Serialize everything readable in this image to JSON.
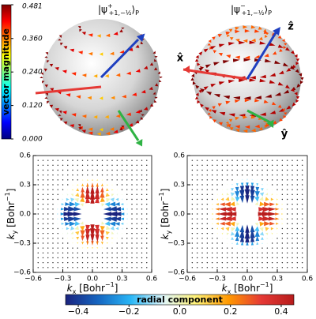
{
  "magnitude_bar": {
    "label": "vector magnitude",
    "lim": [
      0,
      0.481
    ],
    "ticks": [
      {
        "value": 0.481,
        "label": "0.481"
      },
      {
        "value": 0.36,
        "label": "0.360"
      },
      {
        "value": 0.24,
        "label": "0.240"
      },
      {
        "value": 0.12,
        "label": "0.120"
      },
      {
        "value": 0,
        "label": "0.000"
      }
    ],
    "colormap": [
      "#00007f",
      "#0000ff",
      "#0080ff",
      "#00ffff",
      "#7fff7f",
      "#ffff00",
      "#ff8000",
      "#ff0000",
      "#7f0000"
    ]
  },
  "spheres": [
    {
      "title": [
        "|ψ",
        "+",
        "+1,−½",
        "⟩",
        "P"
      ]
    },
    {
      "title": [
        "|ψ",
        "−",
        "+1,−½",
        "⟩",
        "P"
      ],
      "axis_labels": [
        "x̂",
        "ŷ",
        "ẑ"
      ]
    }
  ],
  "plots": [
    {
      "xlabel": [
        "k",
        "x",
        " [Bohr",
        "−1",
        "]"
      ],
      "ylabel": [
        "k",
        "y",
        " [Bohr",
        "−1",
        "]"
      ],
      "xlim": [
        -0.6,
        0.6
      ],
      "ylim": [
        -0.6,
        0.6
      ],
      "xticks": [
        {
          "value": -0.6,
          "label": "−0.6"
        },
        {
          "value": -0.3,
          "label": "−0.3"
        },
        {
          "value": 0,
          "label": "0.0"
        },
        0.3,
        0.6
      ],
      "yticks": [
        {
          "value": -0.6,
          "label": "−0.6"
        },
        {
          "value": -0.3,
          "label": "−0.3"
        },
        {
          "value": 0,
          "label": "0.0"
        },
        0.3,
        0.6
      ]
    },
    {
      "xlabel": [
        "k",
        "x",
        " [Bohr",
        "−1",
        "]"
      ],
      "ylabel": [
        "k",
        "y",
        " [Bohr",
        "−1",
        "]"
      ],
      "xlim": [
        -0.6,
        0.6
      ],
      "ylim": [
        -0.6,
        0.6
      ],
      "xticks": [
        {
          "value": -0.6,
          "label": "−0.6"
        },
        {
          "value": -0.3,
          "label": "−0.3"
        },
        {
          "value": 0,
          "label": "0.0"
        },
        0.3,
        0.6
      ],
      "yticks": [
        {
          "value": -0.6,
          "label": "−0.6"
        },
        {
          "value": -0.3,
          "label": "−0.3"
        },
        {
          "value": 0,
          "label": "0.0"
        },
        0.3,
        0.6
      ]
    }
  ],
  "radial_bar": {
    "label": "radial component",
    "lim": [
      -0.45,
      0.45
    ],
    "ticks": [
      {
        "value": -0.4,
        "label": "−0.4"
      },
      {
        "value": -0.2,
        "label": "−0.2"
      },
      {
        "value": 0,
        "label": "0.0"
      },
      0.2,
      0.4
    ],
    "colormap": [
      "#1a237e",
      "#1565c0",
      "#29b6f6",
      "#e0f7fa",
      "#fff176",
      "#ff9800",
      "#e53935",
      "#b71c1c"
    ]
  }
}
